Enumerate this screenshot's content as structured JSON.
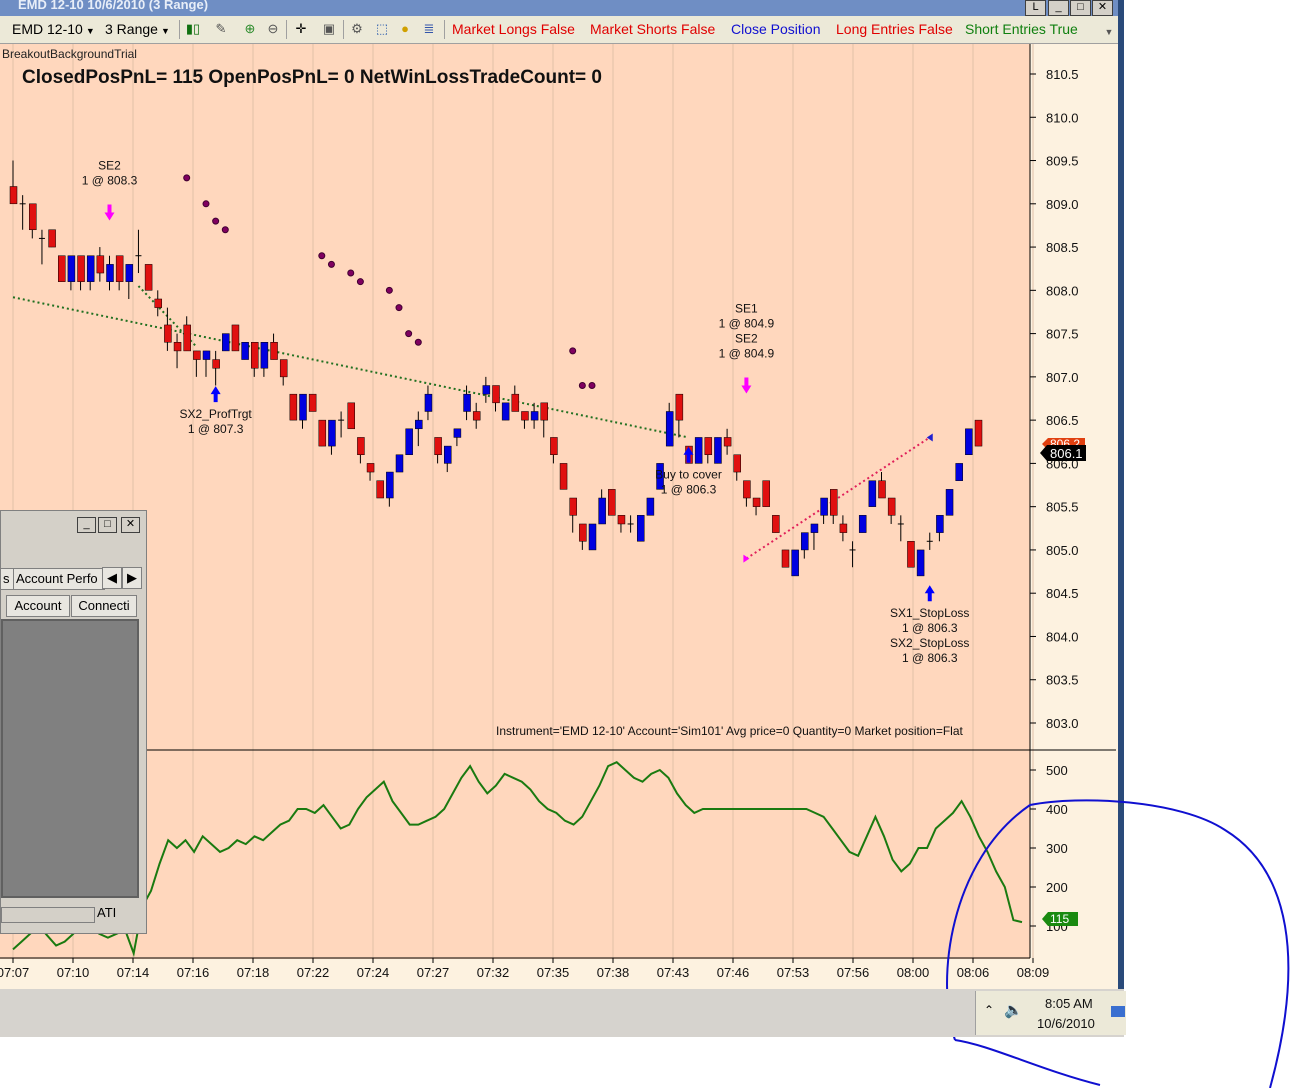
{
  "window": {
    "title": "EMD 12-10  10/6/2010 (3 Range)"
  },
  "toolbar": {
    "instrument": "EMD 12-10",
    "bar_type": "3 Range",
    "buttons": [
      {
        "label": "Market Longs False",
        "color": "#e00000"
      },
      {
        "label": "Market Shorts False",
        "color": "#e00000"
      },
      {
        "label": "Close Position",
        "color": "#1010d0"
      },
      {
        "label": "Long Entries False",
        "color": "#e00000"
      },
      {
        "label": "Short Entries True",
        "color": "#108010"
      }
    ]
  },
  "chart": {
    "strategy_name": "BreakoutBackgroundTrial",
    "pnl_text": "ClosedPosPnL= 115  OpenPosPnL= 0  NetWinLossTradeCount= 0",
    "instrument_info": "Instrument='EMD 12-10' Account='Sim101' Avg price=0 Quantity=0 Market position=Flat",
    "last_price_label": "806.1",
    "prev_price_label": "806.2",
    "indicator_value_label": "115",
    "background_color": "#ffd7bd",
    "up_color": "#0000e0",
    "down_color": "#e01010"
  },
  "chart_data": [
    {
      "type": "candlestick",
      "title": "",
      "ylim": [
        802.7,
        810.8
      ],
      "y_ticks": [
        "810.5",
        "810.0",
        "809.5",
        "809.0",
        "808.5",
        "808.0",
        "807.5",
        "807.0",
        "806.5",
        "806.0",
        "805.5",
        "805.0",
        "804.5",
        "804.0",
        "803.5",
        "803.0"
      ],
      "x_ticks": [
        "07:07",
        "07:10",
        "07:14",
        "07:16",
        "07:18",
        "07:22",
        "07:24",
        "07:27",
        "07:32",
        "07:35",
        "07:38",
        "07:43",
        "07:46",
        "07:53",
        "07:56",
        "08:00",
        "08:06",
        "08:09"
      ],
      "candles": [
        {
          "o": 809.2,
          "c": 809.0,
          "h": 809.5,
          "l": 809.0
        },
        {
          "o": 809.0,
          "c": 809.0,
          "h": 809.1,
          "l": 808.7
        },
        {
          "o": 809.0,
          "c": 808.7,
          "h": 809.0,
          "l": 808.6
        },
        {
          "o": 808.6,
          "c": 808.6,
          "h": 808.7,
          "l": 808.3
        },
        {
          "o": 808.7,
          "c": 808.5,
          "h": 808.7,
          "l": 808.5
        },
        {
          "o": 808.4,
          "c": 808.1,
          "h": 808.4,
          "l": 808.1
        },
        {
          "o": 808.1,
          "c": 808.4,
          "h": 808.4,
          "l": 808.0
        },
        {
          "o": 808.4,
          "c": 808.1,
          "h": 808.4,
          "l": 808.0
        },
        {
          "o": 808.1,
          "c": 808.4,
          "h": 808.4,
          "l": 808.0
        },
        {
          "o": 808.4,
          "c": 808.2,
          "h": 808.5,
          "l": 808.1
        },
        {
          "o": 808.1,
          "c": 808.3,
          "h": 808.4,
          "l": 808.0
        },
        {
          "o": 808.4,
          "c": 808.1,
          "h": 808.4,
          "l": 808.0
        },
        {
          "o": 808.1,
          "c": 808.3,
          "h": 808.3,
          "l": 807.9
        },
        {
          "o": 808.4,
          "c": 808.4,
          "h": 808.7,
          "l": 808.2
        },
        {
          "o": 808.3,
          "c": 808.0,
          "h": 808.3,
          "l": 808.0
        },
        {
          "o": 807.9,
          "c": 807.8,
          "h": 808.0,
          "l": 807.7
        },
        {
          "o": 807.6,
          "c": 807.4,
          "h": 807.8,
          "l": 807.3
        },
        {
          "o": 807.4,
          "c": 807.3,
          "h": 807.5,
          "l": 807.1
        },
        {
          "o": 807.6,
          "c": 807.3,
          "h": 807.7,
          "l": 807.3
        },
        {
          "o": 807.3,
          "c": 807.2,
          "h": 807.3,
          "l": 807.0
        },
        {
          "o": 807.2,
          "c": 807.3,
          "h": 807.3,
          "l": 807.0
        },
        {
          "o": 807.2,
          "c": 807.1,
          "h": 807.3,
          "l": 806.9
        },
        {
          "o": 807.3,
          "c": 807.5,
          "h": 807.5,
          "l": 807.3
        },
        {
          "o": 807.6,
          "c": 807.3,
          "h": 807.6,
          "l": 807.3
        },
        {
          "o": 807.2,
          "c": 807.4,
          "h": 807.4,
          "l": 807.2
        },
        {
          "o": 807.4,
          "c": 807.1,
          "h": 807.4,
          "l": 807.0
        },
        {
          "o": 807.1,
          "c": 807.4,
          "h": 807.4,
          "l": 807.0
        },
        {
          "o": 807.4,
          "c": 807.2,
          "h": 807.5,
          "l": 807.2
        },
        {
          "o": 807.2,
          "c": 807.0,
          "h": 807.2,
          "l": 806.9
        },
        {
          "o": 806.8,
          "c": 806.5,
          "h": 806.8,
          "l": 806.5
        },
        {
          "o": 806.5,
          "c": 806.8,
          "h": 806.8,
          "l": 806.4
        },
        {
          "o": 806.8,
          "c": 806.6,
          "h": 806.8,
          "l": 806.6
        },
        {
          "o": 806.5,
          "c": 806.2,
          "h": 806.5,
          "l": 806.2
        },
        {
          "o": 806.2,
          "c": 806.5,
          "h": 806.5,
          "l": 806.1
        },
        {
          "o": 806.5,
          "c": 806.5,
          "h": 806.6,
          "l": 806.3
        },
        {
          "o": 806.7,
          "c": 806.4,
          "h": 806.7,
          "l": 806.4
        },
        {
          "o": 806.3,
          "c": 806.1,
          "h": 806.3,
          "l": 806.0
        },
        {
          "o": 806.0,
          "c": 805.9,
          "h": 806.0,
          "l": 805.8
        },
        {
          "o": 805.8,
          "c": 805.6,
          "h": 805.8,
          "l": 805.6
        },
        {
          "o": 805.6,
          "c": 805.9,
          "h": 805.9,
          "l": 805.5
        },
        {
          "o": 805.9,
          "c": 806.1,
          "h": 806.1,
          "l": 805.9
        },
        {
          "o": 806.1,
          "c": 806.4,
          "h": 806.4,
          "l": 806.1
        },
        {
          "o": 806.4,
          "c": 806.5,
          "h": 806.6,
          "l": 806.2
        },
        {
          "o": 806.6,
          "c": 806.8,
          "h": 806.9,
          "l": 806.5
        },
        {
          "o": 806.3,
          "c": 806.1,
          "h": 806.3,
          "l": 806.0
        },
        {
          "o": 806.0,
          "c": 806.2,
          "h": 806.2,
          "l": 805.9
        },
        {
          "o": 806.3,
          "c": 806.4,
          "h": 806.4,
          "l": 806.2
        },
        {
          "o": 806.6,
          "c": 806.8,
          "h": 806.9,
          "l": 806.5
        },
        {
          "o": 806.6,
          "c": 806.5,
          "h": 806.7,
          "l": 806.4
        },
        {
          "o": 806.8,
          "c": 806.9,
          "h": 807.0,
          "l": 806.7
        },
        {
          "o": 806.9,
          "c": 806.7,
          "h": 806.9,
          "l": 806.6
        },
        {
          "o": 806.5,
          "c": 806.7,
          "h": 806.7,
          "l": 806.5
        },
        {
          "o": 806.8,
          "c": 806.6,
          "h": 806.9,
          "l": 806.6
        },
        {
          "o": 806.6,
          "c": 806.5,
          "h": 806.6,
          "l": 806.4
        },
        {
          "o": 806.5,
          "c": 806.6,
          "h": 806.7,
          "l": 806.4
        },
        {
          "o": 806.7,
          "c": 806.5,
          "h": 806.7,
          "l": 806.3
        },
        {
          "o": 806.3,
          "c": 806.1,
          "h": 806.3,
          "l": 806.0
        },
        {
          "o": 806.0,
          "c": 805.7,
          "h": 806.0,
          "l": 805.7
        },
        {
          "o": 805.6,
          "c": 805.4,
          "h": 805.6,
          "l": 805.2
        },
        {
          "o": 805.3,
          "c": 805.1,
          "h": 805.3,
          "l": 805.0
        },
        {
          "o": 805.0,
          "c": 805.3,
          "h": 805.3,
          "l": 805.0
        },
        {
          "o": 805.3,
          "c": 805.6,
          "h": 805.7,
          "l": 805.3
        },
        {
          "o": 805.7,
          "c": 805.4,
          "h": 805.7,
          "l": 805.4
        },
        {
          "o": 805.4,
          "c": 805.3,
          "h": 805.4,
          "l": 805.2
        },
        {
          "o": 805.3,
          "c": 805.3,
          "h": 805.4,
          "l": 805.2
        },
        {
          "o": 805.1,
          "c": 805.4,
          "h": 805.4,
          "l": 805.1
        },
        {
          "o": 805.4,
          "c": 805.6,
          "h": 805.6,
          "l": 805.4
        },
        {
          "o": 805.7,
          "c": 806.0,
          "h": 806.0,
          "l": 805.7
        },
        {
          "o": 806.2,
          "c": 806.6,
          "h": 806.7,
          "l": 806.2
        },
        {
          "o": 806.8,
          "c": 806.5,
          "h": 806.8,
          "l": 806.3
        },
        {
          "o": 806.2,
          "c": 806.0,
          "h": 806.2,
          "l": 806.0
        },
        {
          "o": 806.0,
          "c": 806.3,
          "h": 806.3,
          "l": 806.0
        },
        {
          "o": 806.3,
          "c": 806.1,
          "h": 806.3,
          "l": 806.0
        },
        {
          "o": 806.0,
          "c": 806.3,
          "h": 806.3,
          "l": 806.0
        },
        {
          "o": 806.3,
          "c": 806.2,
          "h": 806.4,
          "l": 806.1
        },
        {
          "o": 806.1,
          "c": 805.9,
          "h": 806.1,
          "l": 805.8
        },
        {
          "o": 805.8,
          "c": 805.6,
          "h": 805.8,
          "l": 805.5
        },
        {
          "o": 805.6,
          "c": 805.5,
          "h": 805.6,
          "l": 805.4
        },
        {
          "o": 805.8,
          "c": 805.5,
          "h": 805.8,
          "l": 805.5
        },
        {
          "o": 805.4,
          "c": 805.2,
          "h": 805.4,
          "l": 805.2
        },
        {
          "o": 805.0,
          "c": 804.8,
          "h": 805.0,
          "l": 804.8
        },
        {
          "o": 804.7,
          "c": 805.0,
          "h": 805.0,
          "l": 804.7
        },
        {
          "o": 805.0,
          "c": 805.2,
          "h": 805.2,
          "l": 804.9
        },
        {
          "o": 805.2,
          "c": 805.3,
          "h": 805.3,
          "l": 805.0
        },
        {
          "o": 805.4,
          "c": 805.6,
          "h": 805.6,
          "l": 805.3
        },
        {
          "o": 805.7,
          "c": 805.4,
          "h": 805.7,
          "l": 805.3
        },
        {
          "o": 805.3,
          "c": 805.2,
          "h": 805.4,
          "l": 805.1
        },
        {
          "o": 805.0,
          "c": 805.0,
          "h": 805.1,
          "l": 804.8
        },
        {
          "o": 805.2,
          "c": 805.4,
          "h": 805.4,
          "l": 805.2
        },
        {
          "o": 805.5,
          "c": 805.8,
          "h": 805.8,
          "l": 805.5
        },
        {
          "o": 805.8,
          "c": 805.6,
          "h": 805.9,
          "l": 805.6
        },
        {
          "o": 805.6,
          "c": 805.4,
          "h": 805.6,
          "l": 805.3
        },
        {
          "o": 805.3,
          "c": 805.3,
          "h": 805.4,
          "l": 805.1
        },
        {
          "o": 805.1,
          "c": 804.8,
          "h": 805.1,
          "l": 804.8
        },
        {
          "o": 804.7,
          "c": 805.0,
          "h": 805.0,
          "l": 804.7
        },
        {
          "o": 805.1,
          "c": 805.1,
          "h": 805.2,
          "l": 805.0
        },
        {
          "o": 805.2,
          "c": 805.4,
          "h": 805.4,
          "l": 805.1
        },
        {
          "o": 805.4,
          "c": 805.7,
          "h": 805.7,
          "l": 805.4
        },
        {
          "o": 805.8,
          "c": 806.0,
          "h": 806.0,
          "l": 805.8
        },
        {
          "o": 806.1,
          "c": 806.4,
          "h": 806.4,
          "l": 806.1
        },
        {
          "o": 806.5,
          "c": 806.2,
          "h": 806.5,
          "l": 806.2
        }
      ],
      "dots": [
        [
          809.3,
          18
        ],
        [
          809.0,
          20
        ],
        [
          808.8,
          21
        ],
        [
          808.7,
          22
        ],
        [
          808.4,
          32
        ],
        [
          808.3,
          33
        ],
        [
          808.2,
          35
        ],
        [
          808.1,
          36
        ],
        [
          808.0,
          39
        ],
        [
          807.8,
          40
        ],
        [
          807.5,
          41
        ],
        [
          807.4,
          42
        ],
        [
          807.3,
          58
        ],
        [
          806.9,
          59
        ],
        [
          806.9,
          60
        ]
      ],
      "annotations": [
        {
          "lines": [
            "SE2",
            "1 @ 808.3"
          ],
          "bar": 10,
          "price": 808.9,
          "arrow": "down",
          "arrow_color": "#ff00ff"
        },
        {
          "lines": [
            "SX2_ProfTrgt",
            "1 @ 807.3"
          ],
          "bar": 21,
          "price": 806.8,
          "arrow": "up",
          "arrow_color": "#0000ff"
        },
        {
          "lines": [
            "SE1",
            "1 @ 804.9",
            "SE2",
            "1 @ 804.9"
          ],
          "bar": 76,
          "price": 806.9,
          "arrow": "down",
          "arrow_color": "#ff00ff"
        },
        {
          "lines": [
            "Buy to cover",
            "1 @ 806.3"
          ],
          "bar": 70,
          "price": 806.1,
          "arrow": "up",
          "arrow_color": "#0000ff"
        },
        {
          "lines": [
            "SX1_StopLoss",
            "1 @ 806.3",
            "SX2_StopLoss",
            "1 @ 806.3"
          ],
          "bar": 95,
          "price": 804.5,
          "arrow": "up",
          "arrow_color": "#0000ff"
        }
      ],
      "trend_lines": [
        {
          "from": [
            0,
            807.92
          ],
          "to": [
            70,
            806.3
          ],
          "color": "#207020"
        },
        {
          "from": [
            76,
            804.9
          ],
          "to": [
            95,
            806.3
          ],
          "color": "#e0205a"
        },
        {
          "from": [
            13,
            808.05
          ],
          "to": [
            19,
            807.35
          ],
          "color": "#207020"
        }
      ]
    },
    {
      "type": "line",
      "title": "",
      "ylim": [
        40,
        530
      ],
      "y_ticks": [
        "500",
        "400",
        "300",
        "200",
        "100"
      ],
      "values": [
        40,
        60,
        80,
        100,
        75,
        50,
        60,
        80,
        120,
        100,
        80,
        70,
        80,
        90,
        30,
        150,
        190,
        260,
        320,
        300,
        320,
        290,
        330,
        310,
        290,
        300,
        320,
        310,
        330,
        320,
        340,
        360,
        370,
        400,
        400,
        390,
        410,
        380,
        350,
        360,
        400,
        430,
        450,
        470,
        420,
        390,
        360,
        360,
        370,
        380,
        400,
        440,
        480,
        510,
        470,
        440,
        460,
        490,
        480,
        470,
        450,
        420,
        400,
        390,
        370,
        360,
        380,
        420,
        460,
        510,
        520,
        500,
        480,
        470,
        490,
        500,
        480,
        440,
        410,
        390,
        400,
        400,
        400,
        400,
        400,
        400,
        400,
        400,
        400,
        400,
        400,
        400,
        400,
        390,
        380,
        350,
        320,
        290,
        280,
        330,
        380,
        330,
        270,
        240,
        260,
        300,
        300,
        350,
        370,
        390,
        420,
        380,
        330,
        290,
        240,
        200,
        115,
        110
      ]
    }
  ],
  "sub_window": {
    "tabs": [
      "s",
      "Account Perfo"
    ],
    "columns": [
      "Account",
      "Connecti"
    ],
    "status": "ATI"
  },
  "taskbar": {
    "time": "8:05 AM",
    "date": "10/6/2010"
  }
}
